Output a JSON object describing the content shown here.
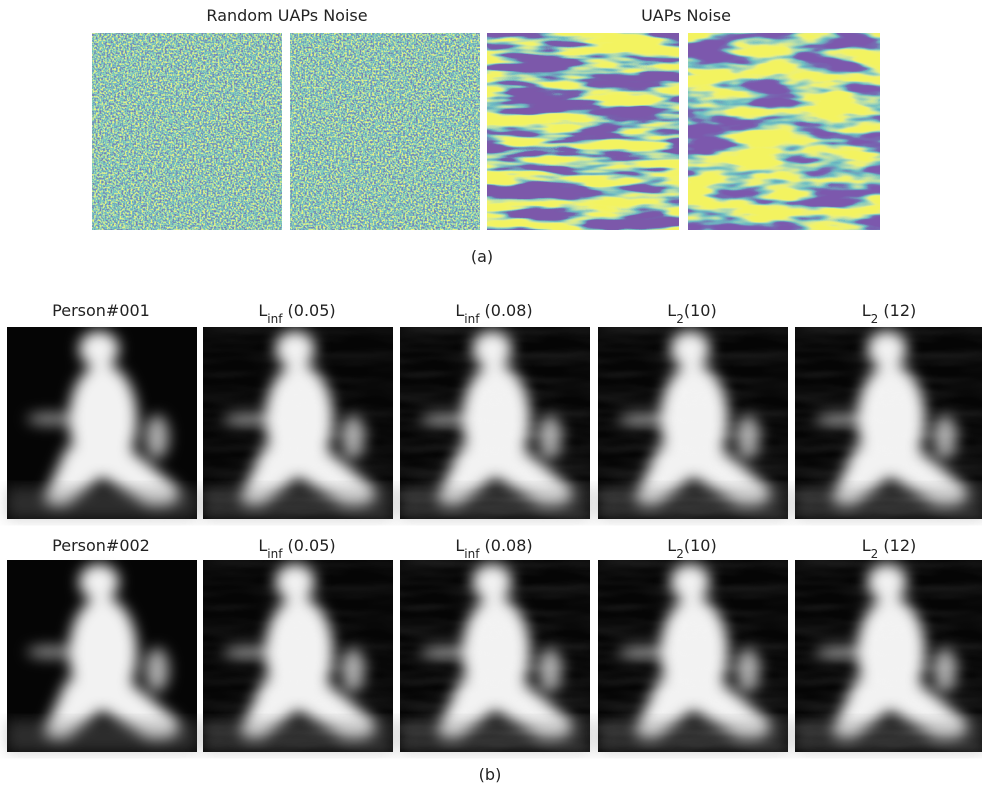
{
  "panel_a": {
    "titles": [
      "Random UAPs Noise",
      "UAPs Noise"
    ],
    "caption": "(a)"
  },
  "panel_b": {
    "rows": [
      {
        "labels": [
          {
            "text": "Person#001"
          },
          {
            "base": "L",
            "sub": "inf",
            "rest": " (0.05)"
          },
          {
            "base": "L",
            "sub": "inf",
            "rest": " (0.08)"
          },
          {
            "base": "L",
            "sub": "2",
            "rest": "(10)"
          },
          {
            "base": "L",
            "sub": "2",
            "rest": " (12)"
          }
        ]
      },
      {
        "labels": [
          {
            "text": "Person#002"
          },
          {
            "base": "L",
            "sub": "inf",
            "rest": " (0.05)"
          },
          {
            "base": "L",
            "sub": "inf",
            "rest": " (0.08)"
          },
          {
            "base": "L",
            "sub": "2",
            "rest": "(10)"
          },
          {
            "base": "L",
            "sub": "2",
            "rest": " (12)"
          }
        ]
      }
    ],
    "caption": "(b)"
  }
}
